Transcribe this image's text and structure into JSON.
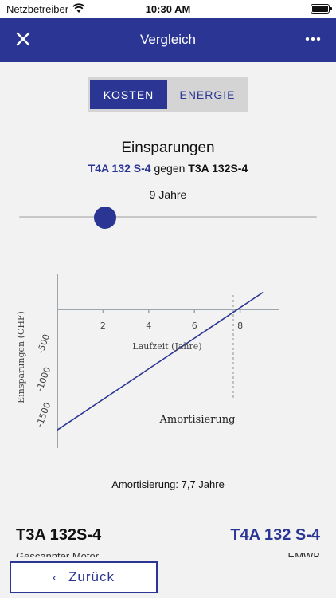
{
  "status_bar": {
    "carrier": "Netzbetreiber",
    "time": "10:30 AM"
  },
  "nav": {
    "title": "Vergleich",
    "close_icon": "close-icon",
    "more_icon": "more-icon"
  },
  "tabs": [
    {
      "label": "KOSTEN",
      "active": true
    },
    {
      "label": "ENERGIE",
      "active": false
    }
  ],
  "savings": {
    "heading": "Einsparungen",
    "motor_a": "T4A 132 S-4",
    "vs": "gegen",
    "motor_b": "T3A 132S-4",
    "years_label": "9 Jahre"
  },
  "slider": {
    "value_years": 9
  },
  "chart_data": {
    "type": "line",
    "xlabel": "Laufzeit (Jahre)",
    "ylabel": "Einsparungen (CHF)",
    "x_ticks": [
      "2",
      "4",
      "6",
      "8"
    ],
    "y_ticks": [
      "-500",
      "-1000",
      "-1500"
    ],
    "series": [
      {
        "x": [
          0,
          9
        ],
        "y": [
          -1700,
          240
        ]
      }
    ],
    "marker_x": 7.7,
    "annotation": "Amortisierung",
    "xlim": [
      0,
      9.5
    ],
    "ylim": [
      -1750,
      500
    ]
  },
  "payback_text": "Amortisierung: 7,7 Jahre",
  "compare": {
    "left_model": "T3A 132S-4",
    "left_sub": "Gescannter Motor",
    "right_model": "T4A 132 S-4",
    "right_sub": "EMWB"
  },
  "footer": {
    "back_label": "Zurück"
  },
  "colors": {
    "brand": "#2b3694"
  }
}
